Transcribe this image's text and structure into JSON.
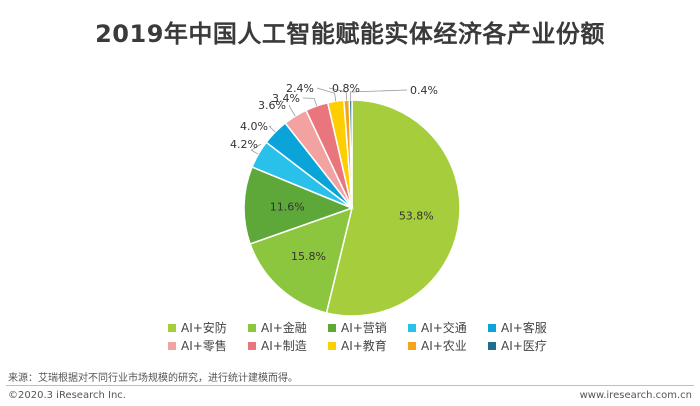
{
  "chart_data": {
    "type": "pie",
    "title": "2019年中国人工智能赋能实体经济各产业份额",
    "slices": [
      {
        "label": "AI+安防",
        "value": 53.8,
        "display": "53.8%",
        "color": "#a6cd3c"
      },
      {
        "label": "AI+金融",
        "value": 15.8,
        "display": "15.8%",
        "color": "#8cc63f"
      },
      {
        "label": "AI+营销",
        "value": 11.6,
        "display": "11.6%",
        "color": "#5ea83a"
      },
      {
        "label": "AI+交通",
        "value": 4.2,
        "display": "4.2%",
        "color": "#29c1ea"
      },
      {
        "label": "AI+客服",
        "value": 4.0,
        "display": "4.0%",
        "color": "#0aa4d8"
      },
      {
        "label": "AI+零售",
        "value": 3.6,
        "display": "3.6%",
        "color": "#f3a2a2"
      },
      {
        "label": "AI+制造",
        "value": 3.4,
        "display": "3.4%",
        "color": "#e9767d"
      },
      {
        "label": "AI+教育",
        "value": 2.4,
        "display": "2.4%",
        "color": "#ffce00"
      },
      {
        "label": "AI+农业",
        "value": 0.8,
        "display": "0.8%",
        "color": "#f7a41d"
      },
      {
        "label": "AI+医疗",
        "value": 0.4,
        "display": "0.4%",
        "color": "#1f6e8c"
      }
    ],
    "legend": {
      "position": "bottom"
    }
  },
  "footer": {
    "source": "来源：艾瑞根据对不同行业市场规模的研究，进行统计建模而得。",
    "copyright": "©2020.3 iResearch Inc.",
    "website": "www.iresearch.com.cn"
  }
}
